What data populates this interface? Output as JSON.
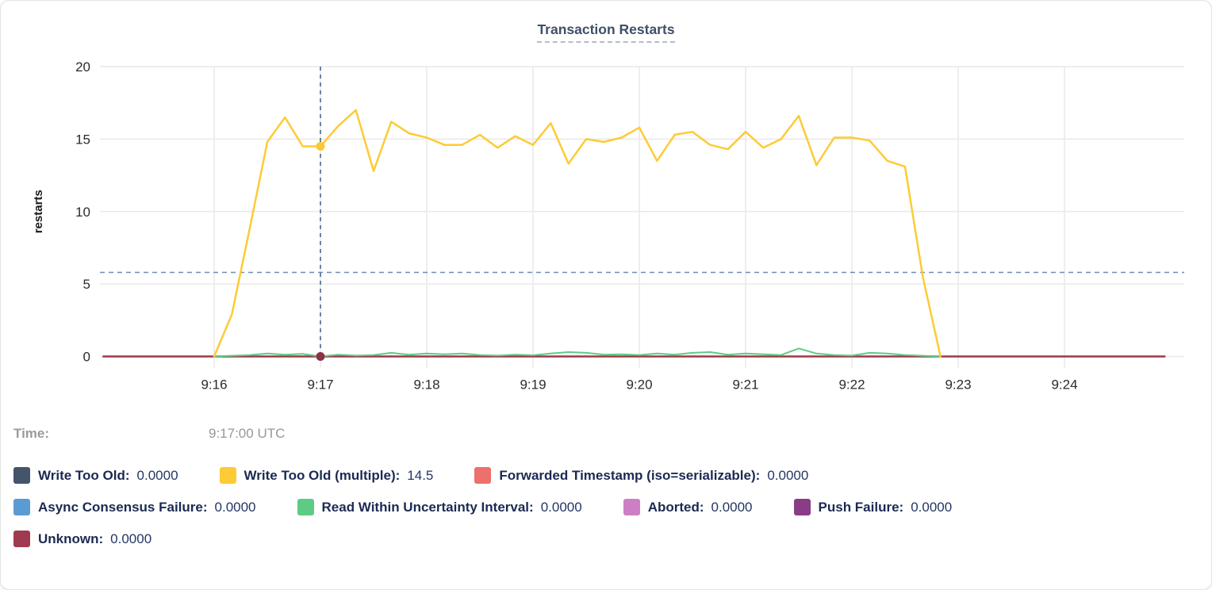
{
  "chart": {
    "title": "Transaction Restarts",
    "ylabel": "restarts"
  },
  "tooltip": {
    "time_label": "Time:",
    "time_value": "9:17:00 UTC"
  },
  "legend": {
    "rows": [
      [
        {
          "id": "write-too-old",
          "label": "Write Too Old:",
          "value": "0.0000",
          "color": "#44546b"
        },
        {
          "id": "write-too-old-multiple",
          "label": "Write Too Old (multiple):",
          "value": "14.5",
          "color": "#fdcb35"
        },
        {
          "id": "forwarded-timestamp",
          "label": "Forwarded Timestamp (iso=serializable):",
          "value": "0.0000",
          "color": "#ec706c"
        }
      ],
      [
        {
          "id": "async-consensus-failure",
          "label": "Async Consensus Failure:",
          "value": "0.0000",
          "color": "#5b9bd3"
        },
        {
          "id": "read-within-uncertainty-interval",
          "label": "Read Within Uncertainty Interval:",
          "value": "0.0000",
          "color": "#5ecb85"
        },
        {
          "id": "aborted",
          "label": "Aborted:",
          "value": "0.0000",
          "color": "#cd7fc4"
        },
        {
          "id": "push-failure",
          "label": "Push Failure:",
          "value": "0.0000",
          "color": "#8a3c86"
        }
      ],
      [
        {
          "id": "unknown",
          "label": "Unknown:",
          "value": "0.0000",
          "color": "#a03a50"
        }
      ]
    ]
  },
  "chart_data": {
    "type": "line",
    "title": "Transaction Restarts",
    "xlabel": "",
    "ylabel": "restarts",
    "ylim": [
      0,
      20
    ],
    "y_ticks": [
      0,
      5,
      10,
      15,
      20
    ],
    "x_ticks": [
      "9:16",
      "9:17",
      "9:18",
      "9:19",
      "9:20",
      "9:21",
      "9:22",
      "9:23",
      "9:24"
    ],
    "xlim_minutes_from_916": [
      -1.07,
      9.13
    ],
    "grid": true,
    "legend_position": "bottom",
    "x_start": "9:16:00",
    "x_step_sec": 10,
    "series": [
      {
        "name": "Unknown",
        "color": "#9c3848",
        "constant": 0,
        "x_range_min": [
          -1.05,
          8.95
        ]
      },
      {
        "name": "Read Within Uncertainty Interval",
        "color": "#5ecb85",
        "width": 2,
        "x_start_min": 0,
        "x_step_min": 0.16667,
        "values": [
          0,
          0.05,
          0.1,
          0.2,
          0.12,
          0.18,
          0.0,
          0.12,
          0.06,
          0.1,
          0.25,
          0.12,
          0.2,
          0.15,
          0.2,
          0.1,
          0.06,
          0.12,
          0.08,
          0.2,
          0.3,
          0.25,
          0.12,
          0.15,
          0.1,
          0.2,
          0.12,
          0.25,
          0.3,
          0.12,
          0.2,
          0.15,
          0.1,
          0.55,
          0.2,
          0.1,
          0.06,
          0.25,
          0.2,
          0.1,
          0.05,
          0
        ]
      },
      {
        "name": "Write Too Old (multiple)",
        "color": "#fdcb35",
        "width": 2.5,
        "x_start_min": 0,
        "x_step_min": 0.16667,
        "values": [
          0,
          2.9,
          8.8,
          14.8,
          16.5,
          14.5,
          14.5,
          15.9,
          17.0,
          12.8,
          16.2,
          15.4,
          15.1,
          14.6,
          14.6,
          15.3,
          14.4,
          15.2,
          14.6,
          16.1,
          13.3,
          15.0,
          14.8,
          15.1,
          15.8,
          13.5,
          15.3,
          15.5,
          14.6,
          14.3,
          15.5,
          14.4,
          15.0,
          16.6,
          13.2,
          15.1,
          15.1,
          14.9,
          13.5,
          13.1,
          5.5,
          0
        ]
      }
    ],
    "crosshair": {
      "time": "9:17:00",
      "time_min": 1,
      "hline_value": 5.8,
      "points": [
        {
          "series": "Write Too Old (multiple)",
          "value": 14.5,
          "color": "#fdc835"
        },
        {
          "series": "Unknown",
          "value": 0,
          "color": "#8c3144"
        }
      ]
    }
  }
}
